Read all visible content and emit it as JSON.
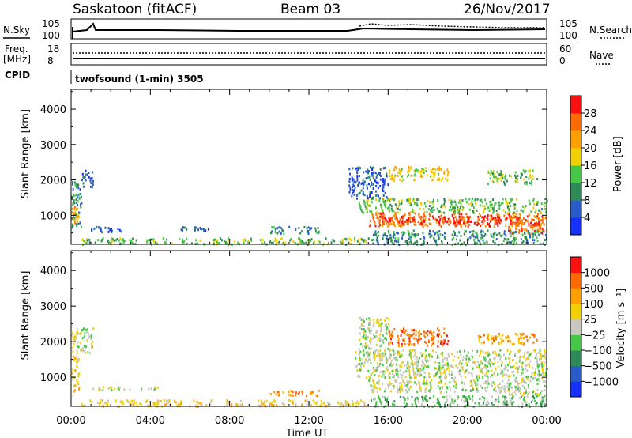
{
  "header": {
    "station": "Saskatoon (fitACF)",
    "beam": "Beam 03",
    "date": "26/Nov/2017"
  },
  "noise_panel": {
    "left_label": "N.Sky",
    "left_ticks": [
      "10^5",
      "10^0"
    ],
    "right_label": "N.Search",
    "right_ticks": [
      "10^5",
      "10^0"
    ]
  },
  "freq_panel": {
    "left_label_1": "Freq.",
    "left_label_2": "[MHz]",
    "left_ticks": [
      "18",
      "8"
    ],
    "right_label": "Nave",
    "right_ticks": [
      "60",
      "0"
    ]
  },
  "cpid": {
    "label": "CPID",
    "text": "twofsound (1-min) 3505"
  },
  "chart_data": [
    {
      "type": "heatmap",
      "name_panel": "power",
      "ylabel": "Slant Range [km]",
      "yticks": [
        1000,
        2000,
        3000,
        4000
      ],
      "ylim": [
        180,
        4560
      ],
      "xlim_hours": [
        0,
        24
      ],
      "colorbar_label": "Power [dB]",
      "colorbar_ticks": [
        "4",
        "8",
        "12",
        "16",
        "20",
        "24",
        "28"
      ],
      "colorbar_colors": [
        "#1530ff",
        "#2a5cc8",
        "#2e8b57",
        "#46c846",
        "#f0d000",
        "#ffa000",
        "#ff6a00",
        "#ff1010"
      ],
      "regions": [
        {
          "t0": 0.0,
          "t1": 0.5,
          "r0": 600,
          "r1": 2000,
          "level": 2
        },
        {
          "t0": 0.0,
          "t1": 0.35,
          "r0": 800,
          "r1": 1300,
          "level": 5
        },
        {
          "t0": 0.5,
          "t1": 1.1,
          "r0": 1800,
          "r1": 2300,
          "level": 1
        },
        {
          "t0": 1.0,
          "t1": 2.5,
          "r0": 550,
          "r1": 700,
          "level": 1
        },
        {
          "t0": 0.5,
          "t1": 15.0,
          "r0": 200,
          "r1": 380,
          "level": 3
        },
        {
          "t0": 5.5,
          "t1": 7.0,
          "r0": 600,
          "r1": 700,
          "level": 1
        },
        {
          "t0": 10.0,
          "t1": 12.5,
          "r0": 500,
          "r1": 700,
          "level": 2
        },
        {
          "t0": 14.5,
          "t1": 24.0,
          "r0": 1100,
          "r1": 1500,
          "level": 3
        },
        {
          "t0": 15.0,
          "t1": 23.8,
          "r0": 700,
          "r1": 1100,
          "level": 6
        },
        {
          "t0": 15.5,
          "t1": 22.5,
          "r0": 800,
          "r1": 1000,
          "level": 7
        },
        {
          "t0": 16.0,
          "t1": 19.0,
          "r0": 2000,
          "r1": 2400,
          "level": 4
        },
        {
          "t0": 21.0,
          "t1": 23.5,
          "r0": 1900,
          "r1": 2300,
          "level": 3
        },
        {
          "t0": 14.0,
          "t1": 16.0,
          "r0": 1500,
          "r1": 2400,
          "level": 1
        },
        {
          "t0": 22.0,
          "t1": 24.0,
          "r0": 500,
          "r1": 1000,
          "level": 6
        },
        {
          "t0": 15.0,
          "t1": 24.0,
          "r0": 200,
          "r1": 600,
          "level": 2
        }
      ]
    },
    {
      "type": "heatmap",
      "name_panel": "velocity",
      "ylabel": "Slant Range [km]",
      "yticks": [
        1000,
        2000,
        3000,
        4000
      ],
      "ylim": [
        180,
        4560
      ],
      "xlim_hours": [
        0,
        24
      ],
      "xticks": [
        "00:00",
        "04:00",
        "08:00",
        "12:00",
        "16:00",
        "20:00",
        "00:00"
      ],
      "xlabel": "Time UT",
      "colorbar_label": "Velocity [m s⁻¹]",
      "colorbar_ticks": [
        "1000",
        "500",
        "100",
        "25",
        "−25",
        "−100",
        "−500",
        "−1000"
      ],
      "colorbar_colors": [
        "#1530ff",
        "#2a5cc8",
        "#2e8b57",
        "#46c846",
        "#c8c8c0",
        "#f0d000",
        "#ffa000",
        "#ff6a00",
        "#ff1010"
      ],
      "regions": [
        {
          "t0": 0.0,
          "t1": 1.1,
          "r0": 1700,
          "r1": 2400,
          "level": 4
        },
        {
          "t0": 0.0,
          "t1": 0.4,
          "r0": 600,
          "r1": 1700,
          "level": 5
        },
        {
          "t0": 1.0,
          "t1": 4.5,
          "r0": 650,
          "r1": 750,
          "level": 4
        },
        {
          "t0": 0.5,
          "t1": 15.0,
          "r0": 200,
          "r1": 380,
          "level": 5
        },
        {
          "t0": 10.0,
          "t1": 12.5,
          "r0": 500,
          "r1": 650,
          "level": 6
        },
        {
          "t0": 14.3,
          "t1": 24.0,
          "r0": 1000,
          "r1": 1800,
          "level": 4
        },
        {
          "t0": 14.5,
          "t1": 16.0,
          "r0": 1500,
          "r1": 2700,
          "level": 4
        },
        {
          "t0": 16.0,
          "t1": 19.0,
          "r0": 1900,
          "r1": 2400,
          "level": 7
        },
        {
          "t0": 20.5,
          "t1": 23.5,
          "r0": 1950,
          "r1": 2250,
          "level": 6
        },
        {
          "t0": 15.0,
          "t1": 22.0,
          "r0": 600,
          "r1": 950,
          "level": 4
        },
        {
          "t0": 22.0,
          "t1": 24.0,
          "r0": 500,
          "r1": 1000,
          "level": 4
        },
        {
          "t0": 15.0,
          "t1": 24.0,
          "r0": 200,
          "r1": 500,
          "level": 3
        }
      ]
    }
  ]
}
